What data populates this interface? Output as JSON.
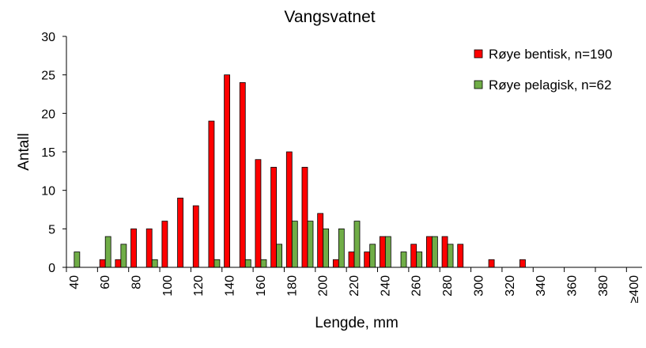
{
  "chart_data": {
    "type": "bar",
    "title": "Vangsvatnet",
    "xlabel": "Lengde, mm",
    "ylabel": "Antall",
    "ylim": [
      0,
      30
    ],
    "yticks": [
      "0",
      "5",
      "10",
      "15",
      "20",
      "25",
      "30"
    ],
    "categories": [
      "40",
      "50",
      "60",
      "70",
      "80",
      "90",
      "100",
      "110",
      "120",
      "130",
      "140",
      "150",
      "160",
      "170",
      "180",
      "190",
      "200",
      "210",
      "220",
      "230",
      "240",
      "250",
      "260",
      "270",
      "280",
      "290",
      "300",
      "310",
      "320",
      "330",
      "340",
      "350",
      "360",
      "370",
      "380",
      "390",
      "≥400"
    ],
    "x_tick_labels": [
      "40",
      "60",
      "80",
      "100",
      "120",
      "140",
      "160",
      "180",
      "200",
      "220",
      "240",
      "260",
      "280",
      "300",
      "320",
      "340",
      "360",
      "380",
      "≥400"
    ],
    "legend_position": "top-right",
    "grid": false,
    "series": [
      {
        "name": "Røye bentisk, n=190",
        "color": "#ff0000",
        "values": [
          0,
          0,
          1,
          1,
          5,
          5,
          6,
          9,
          8,
          19,
          25,
          24,
          14,
          13,
          15,
          13,
          7,
          1,
          2,
          2,
          4,
          0,
          3,
          4,
          4,
          3,
          0,
          1,
          0,
          1,
          0,
          0,
          0,
          0,
          0,
          0,
          0
        ]
      },
      {
        "name": "Røye pelagisk, n=62",
        "color": "#70ad47",
        "values": [
          2,
          0,
          4,
          3,
          0,
          1,
          0,
          0,
          0,
          1,
          0,
          1,
          1,
          3,
          6,
          6,
          5,
          5,
          6,
          3,
          4,
          2,
          2,
          4,
          3,
          0,
          0,
          0,
          0,
          0,
          0,
          0,
          0,
          0,
          0,
          0,
          0
        ]
      }
    ]
  }
}
